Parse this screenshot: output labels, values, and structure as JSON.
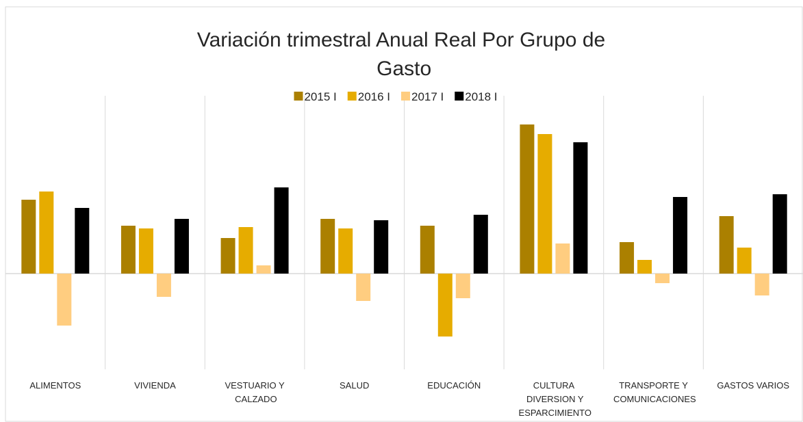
{
  "chart_data": {
    "type": "bar",
    "title": "Variación trimestral Anual Real Por Grupo de Gasto",
    "categories": [
      "ALIMENTOS",
      "VIVIENDA",
      "VESTUARIO Y CALZADO",
      "SALUD",
      "EDUCACIÓN",
      "CULTURA DIVERSION Y ESPARCIMIENTO",
      "TRANSPORTE Y COMUNICACIONES",
      "GASTOS VARIOS"
    ],
    "series": [
      {
        "name": "2015 I",
        "color": "#ab8000",
        "values": [
          5.4,
          3.5,
          2.6,
          4.0,
          3.5,
          10.9,
          2.3,
          4.2
        ]
      },
      {
        "name": "2016 I",
        "color": "#e6ac00",
        "values": [
          6.0,
          3.3,
          3.4,
          3.3,
          -4.6,
          10.2,
          1.0,
          1.9
        ]
      },
      {
        "name": "2017 I",
        "color": "#ffcd80",
        "values": [
          -3.8,
          -1.7,
          0.6,
          -2.0,
          -1.8,
          2.2,
          -0.7,
          -1.6
        ]
      },
      {
        "name": "2018 I",
        "color": "#000000",
        "values": [
          4.8,
          4.0,
          6.3,
          3.9,
          4.3,
          9.6,
          5.6,
          5.8
        ]
      }
    ],
    "ylim": [
      -7,
      13
    ],
    "legend": "top"
  }
}
